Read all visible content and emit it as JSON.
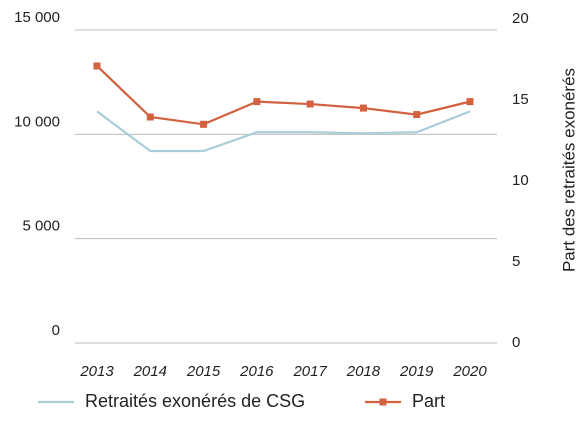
{
  "chart_data": {
    "type": "line",
    "categories": [
      "2013",
      "2014",
      "2015",
      "2016",
      "2017",
      "2018",
      "2019",
      "2020"
    ],
    "series": [
      {
        "name": "Retraités exonérés de CSG",
        "color": "#a9cdd9",
        "values": [
          11100,
          9200,
          9200,
          10100,
          10100,
          10050,
          10100,
          11100
        ]
      },
      {
        "name": "Part",
        "color": "#d1613f",
        "axis": "y2",
        "marker": "square",
        "values": [
          17.1,
          13.95,
          13.5,
          14.9,
          14.75,
          14.5,
          14.1,
          14.9
        ]
      }
    ],
    "ylim": [
      0,
      15000
    ],
    "yticks": [
      0,
      {
        "value": 5000,
        "label": "5 000"
      },
      {
        "value": 10000,
        "label": "10 000"
      },
      {
        "value": 15000,
        "label": "15 000"
      }
    ],
    "y2lim": [
      0,
      20
    ],
    "y2ticks": [
      0,
      5,
      10,
      15,
      20
    ],
    "y2label": "Part des retraités exonérés",
    "grid": true,
    "legend": "bottom"
  }
}
